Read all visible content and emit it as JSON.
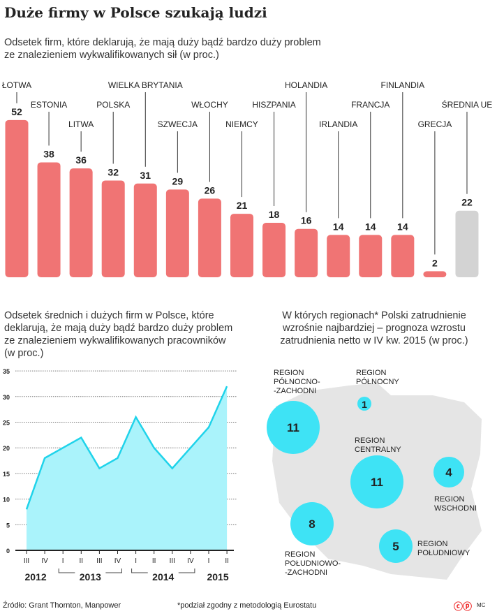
{
  "title": "Duże firmy w Polsce szukają ludzi",
  "subtitle": [
    "Odsetek firm, które deklarują, że mają duży bądź bardzo duży problem",
    "ze znalezieniem wykwalifikowanych sił (w proc.)"
  ],
  "chart_data": [
    {
      "type": "bar",
      "categories": [
        "ŁOTWA",
        "ESTONIA",
        "LITWA",
        "POLSKA",
        "WIELKA BRYTANIA",
        "SZWECJA",
        "WŁOCHY",
        "NIEMCY",
        "HISZPANIA",
        "HOLANDIA",
        "IRLANDIA",
        "FRANCJA",
        "FINLANDIA",
        "GRECJA",
        "ŚREDNIA UE"
      ],
      "values": [
        52,
        38,
        36,
        32,
        31,
        29,
        26,
        21,
        18,
        16,
        14,
        14,
        14,
        2,
        22
      ],
      "colors": {
        "country": "#f07474",
        "average": "#d3d3d3"
      }
    },
    {
      "type": "area",
      "title": [
        "Odsetek średnich i dużych firm w Polsce, które",
        "deklarują, że mają duży bądź bardzo duży problem",
        "ze znalezieniem wykwalifikowanych pracowników",
        "(w proc.)"
      ],
      "x": [
        "III",
        "IV",
        "I",
        "II",
        "III",
        "IV",
        "I",
        "II",
        "III",
        "IV",
        "I",
        "II"
      ],
      "years": [
        "2012",
        "2013",
        "2014",
        "2015"
      ],
      "values": [
        8,
        18,
        20,
        22,
        16,
        18,
        26,
        20,
        16,
        20,
        24,
        32
      ],
      "ylim": [
        0,
        35
      ],
      "yticks": [
        0,
        5,
        10,
        15,
        20,
        25,
        30,
        35
      ],
      "grid": true,
      "colors": {
        "line": "#1fd3ea",
        "fill": "#aaf3fb"
      }
    },
    {
      "type": "bubble-map",
      "title": [
        "W których regionach* Polski zatrudnienie",
        "wzrośnie najbardziej – prognoza wzrostu",
        "zatrudnienia netto w IV kw. 2015 (w proc.)"
      ],
      "regions": [
        {
          "name": [
            "REGION",
            "PÓŁNOCNO-",
            "-ZACHODNI"
          ],
          "value": 11
        },
        {
          "name": [
            "REGION",
            "PÓŁNOCNY"
          ],
          "value": 1
        },
        {
          "name": [
            "REGION",
            "CENTRALNY"
          ],
          "value": 11
        },
        {
          "name": [
            "REGION",
            "WSCHODNI"
          ],
          "value": 4
        },
        {
          "name": [
            "REGION",
            "POŁUDNIOWO-",
            "-ZACHODNI"
          ],
          "value": 8
        },
        {
          "name": [
            "REGION",
            "POŁUDNIOWY"
          ],
          "value": 5
        }
      ],
      "colors": {
        "bubble": "#3ee3f5",
        "map": "#e5e5e5"
      }
    }
  ],
  "footer": {
    "source": "Źródło: Grant Thornton, Manpower",
    "note": "*podział zgodny z metodologią Eurostatu",
    "logo": "CP",
    "author": "MC"
  }
}
